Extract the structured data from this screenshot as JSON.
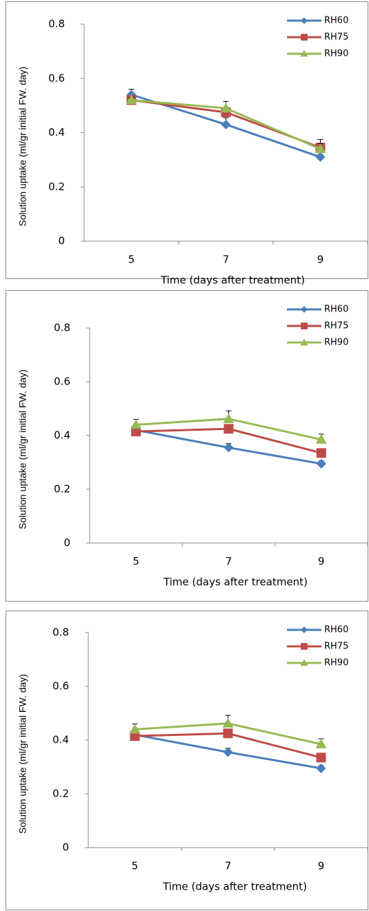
{
  "chart_data": [
    {
      "type": "line",
      "y_label": "Solution uptake (ml/gr initial FW. day)",
      "x_label": "Time (days after treatment)",
      "categories": [
        "5",
        "7",
        "9"
      ],
      "ylim": [
        0,
        0.8
      ],
      "yticks": [
        0,
        0.2,
        0.4,
        0.6,
        0.8
      ],
      "grid": false,
      "legend": "top-right",
      "series": [
        {
          "name": "RH60",
          "color": "#4a7ebb",
          "marker": "diamond",
          "values": [
            0.54,
            0.43,
            0.31
          ],
          "errors": [
            0.02,
            0.025,
            0.01
          ]
        },
        {
          "name": "RH75",
          "color": "#be4b48",
          "marker": "square",
          "values": [
            0.52,
            0.475,
            0.345
          ],
          "errors": [
            0.01,
            0.01,
            0.03
          ]
        },
        {
          "name": "RH90",
          "color": "#98b954",
          "marker": "triangle",
          "values": [
            0.52,
            0.49,
            0.34
          ],
          "errors": [
            0.01,
            0.025,
            0.02
          ]
        }
      ]
    },
    {
      "type": "line",
      "y_label": "Solution uptake (ml/gr initial FW. day)",
      "x_label": "Time (days after treatment)",
      "categories": [
        "5",
        "7",
        "9"
      ],
      "ylim": [
        0,
        0.8
      ],
      "yticks": [
        0,
        0.2,
        0.4,
        0.6,
        0.8
      ],
      "grid": false,
      "legend": "top-right",
      "series": [
        {
          "name": "RH60",
          "color": "#4a7ebb",
          "marker": "diamond",
          "values": [
            0.42,
            0.355,
            0.295
          ],
          "errors": [
            0.01,
            0.015,
            0.01
          ]
        },
        {
          "name": "RH75",
          "color": "#be4b48",
          "marker": "square",
          "values": [
            0.415,
            0.425,
            0.335
          ],
          "errors": [
            0.01,
            0.01,
            0.01
          ]
        },
        {
          "name": "RH90",
          "color": "#98b954",
          "marker": "triangle",
          "values": [
            0.44,
            0.462,
            0.385
          ],
          "errors": [
            0.02,
            0.03,
            0.02
          ]
        }
      ]
    },
    {
      "type": "line",
      "y_label": "Solution uptake (ml/gr initial FW. day)",
      "x_label": "Time (days after treatment)",
      "categories": [
        "5",
        "7",
        "9"
      ],
      "ylim": [
        0,
        0.8
      ],
      "yticks": [
        0,
        0.2,
        0.4,
        0.6,
        0.8
      ],
      "grid": false,
      "legend": "top-right",
      "series": [
        {
          "name": "RH60",
          "color": "#4a7ebb",
          "marker": "diamond",
          "values": [
            0.42,
            0.355,
            0.295
          ],
          "errors": [
            0.01,
            0.015,
            0.01
          ]
        },
        {
          "name": "RH75",
          "color": "#be4b48",
          "marker": "square",
          "values": [
            0.415,
            0.425,
            0.335
          ],
          "errors": [
            0.01,
            0.01,
            0.01
          ]
        },
        {
          "name": "RH90",
          "color": "#98b954",
          "marker": "triangle",
          "values": [
            0.44,
            0.462,
            0.385
          ],
          "errors": [
            0.02,
            0.03,
            0.02
          ]
        }
      ]
    }
  ]
}
